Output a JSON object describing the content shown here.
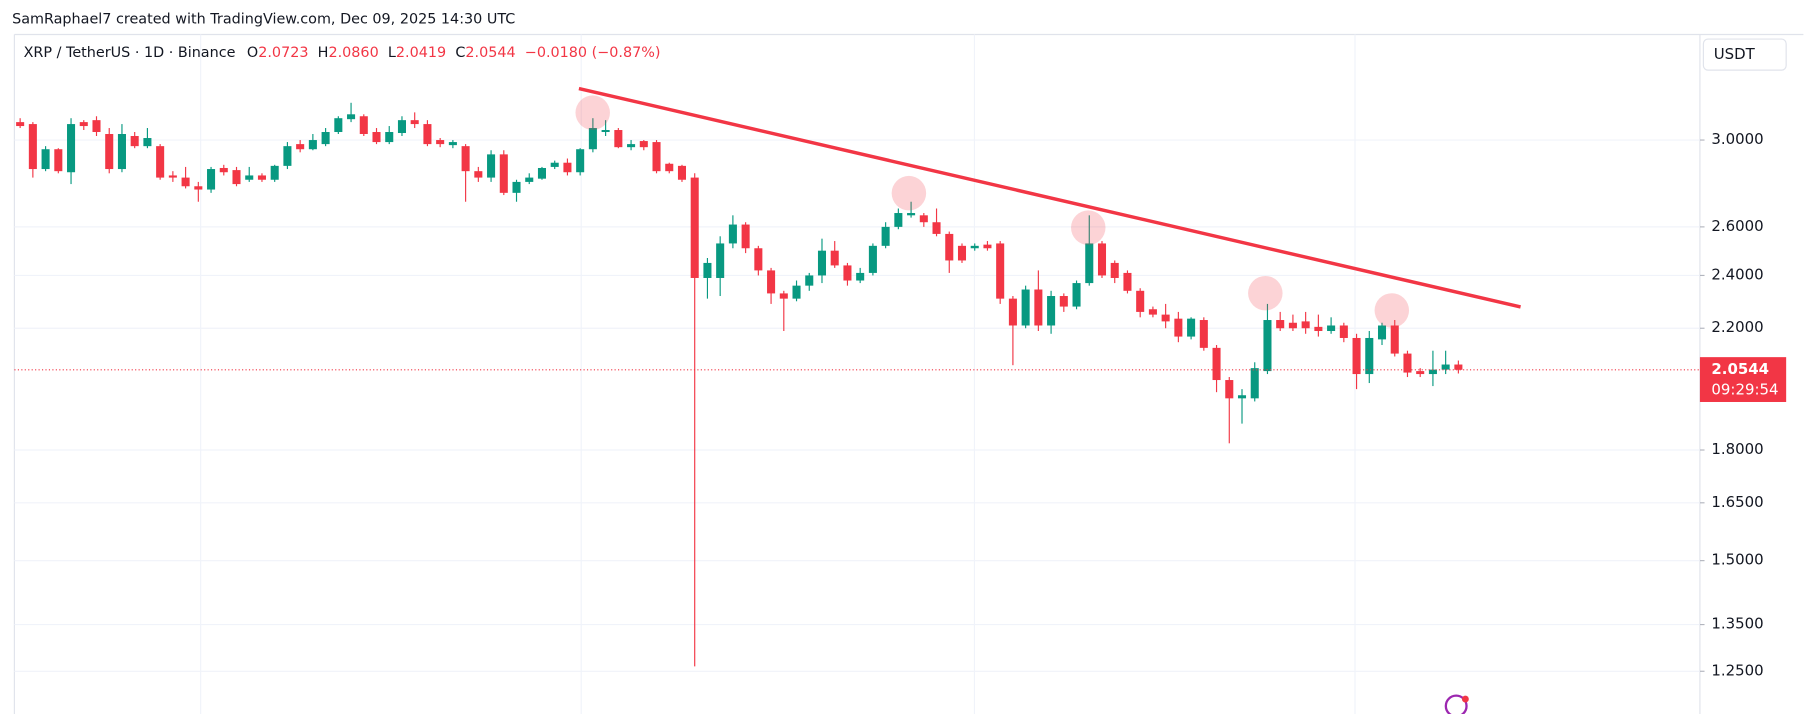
{
  "watermark": "SamRaphael7 created with TradingView.com, Dec 09, 2025 14:30 UTC",
  "header": {
    "symbol": "XRP / TetherUS · 1D · Binance",
    "open_label": "O",
    "open": "2.0723",
    "high_label": "H",
    "high": "2.0860",
    "low_label": "L",
    "low": "2.0419",
    "close_label": "C",
    "close": "2.0544",
    "change": "−0.0180 (−0.87%)"
  },
  "currency_button": "USDT",
  "countdown": "09:29:54",
  "chart_data": {
    "type": "candlestick",
    "log_scale": true,
    "grid": true,
    "up_color": "#089981",
    "down_color": "#f23645",
    "ylim": [
      1.165,
      3.57
    ],
    "yticks": [
      {
        "value": 3,
        "label": "3.0000"
      },
      {
        "value": 2.6,
        "label": "2.6000"
      },
      {
        "value": 2.4,
        "label": "2.4000"
      },
      {
        "value": 2.2,
        "label": "2.2000"
      },
      {
        "value": 1.8,
        "label": "1.8000"
      },
      {
        "value": 1.65,
        "label": "1.6500"
      },
      {
        "value": 1.5,
        "label": "1.5000"
      },
      {
        "value": 1.35,
        "label": "1.3500"
      },
      {
        "value": 1.25,
        "label": "1.2500"
      }
    ],
    "open": [
      3.09,
      3.08,
      2.86,
      2.955,
      2.845,
      3.09,
      3.1,
      3.03,
      2.86,
      3.02,
      2.97,
      2.97,
      2.83,
      2.82,
      2.78,
      2.765,
      2.865,
      2.855,
      2.81,
      2.83,
      2.81,
      2.875,
      2.98,
      2.955,
      2.98,
      3.04,
      3.105,
      3.12,
      3.04,
      2.99,
      3.035,
      3.1,
      3.08,
      3.0,
      2.975,
      2.97,
      2.85,
      2.82,
      2.93,
      2.75,
      2.8,
      2.815,
      2.87,
      2.89,
      2.845,
      2.955,
      3.04,
      3.05,
      2.965,
      2.995,
      2.99,
      2.885,
      2.875,
      2.82,
      2.39,
      2.39,
      2.53,
      2.61,
      2.51,
      2.42,
      2.33,
      2.31,
      2.36,
      2.4,
      2.5,
      2.44,
      2.38,
      2.41,
      2.52,
      2.6,
      2.65,
      2.65,
      2.62,
      2.57,
      2.52,
      2.51,
      2.525,
      2.53,
      2.31,
      2.21,
      2.345,
      2.21,
      2.32,
      2.28,
      2.37,
      2.53,
      2.45,
      2.41,
      2.34,
      2.27,
      2.25,
      2.235,
      2.17,
      2.23,
      2.13,
      2.02,
      1.96,
      1.96,
      2.05,
      2.23,
      2.22,
      2.225,
      2.205,
      2.19,
      2.21,
      2.165,
      2.04,
      2.16,
      2.21,
      2.11,
      2.05,
      2.04,
      2.055,
      2.0723
    ],
    "high": [
      3.11,
      3.09,
      2.97,
      2.96,
      3.11,
      3.1,
      3.12,
      3.06,
      3.08,
      3.04,
      3.06,
      2.98,
      2.85,
      2.87,
      2.8,
      2.87,
      2.88,
      2.87,
      2.87,
      2.84,
      2.88,
      2.99,
      3.0,
      3.03,
      3.06,
      3.12,
      3.19,
      3.13,
      3.06,
      3.07,
      3.12,
      3.14,
      3.1,
      3.01,
      3.0,
      2.98,
      2.87,
      2.95,
      2.95,
      2.81,
      2.84,
      2.87,
      2.9,
      2.91,
      2.96,
      3.11,
      3.1,
      3.06,
      3.0,
      3.0,
      3.0,
      2.89,
      2.88,
      2.84,
      2.47,
      2.56,
      2.65,
      2.62,
      2.52,
      2.43,
      2.34,
      2.38,
      2.41,
      2.55,
      2.54,
      2.45,
      2.43,
      2.53,
      2.62,
      2.68,
      2.71,
      2.66,
      2.68,
      2.58,
      2.53,
      2.53,
      2.54,
      2.54,
      2.32,
      2.36,
      2.42,
      2.34,
      2.33,
      2.38,
      2.65,
      2.54,
      2.46,
      2.42,
      2.35,
      2.28,
      2.29,
      2.26,
      2.24,
      2.24,
      2.14,
      2.03,
      1.99,
      2.08,
      2.29,
      2.26,
      2.25,
      2.26,
      2.25,
      2.24,
      2.22,
      2.18,
      2.19,
      2.22,
      2.23,
      2.12,
      2.06,
      2.12,
      2.12,
      2.086
    ],
    "low": [
      3.06,
      2.82,
      2.85,
      2.84,
      2.79,
      3.05,
      3.02,
      2.84,
      2.845,
      2.96,
      2.96,
      2.81,
      2.8,
      2.77,
      2.71,
      2.75,
      2.83,
      2.78,
      2.8,
      2.8,
      2.8,
      2.86,
      2.94,
      2.95,
      2.97,
      3.03,
      3.09,
      3.02,
      2.98,
      2.98,
      3.02,
      3.06,
      2.97,
      2.965,
      2.96,
      2.71,
      2.8,
      2.8,
      2.74,
      2.71,
      2.79,
      2.81,
      2.86,
      2.83,
      2.83,
      2.94,
      3.02,
      2.96,
      2.95,
      2.95,
      2.84,
      2.84,
      2.8,
      1.26,
      2.31,
      2.32,
      2.51,
      2.49,
      2.4,
      2.29,
      2.19,
      2.3,
      2.34,
      2.37,
      2.43,
      2.36,
      2.37,
      2.4,
      2.51,
      2.59,
      2.64,
      2.6,
      2.56,
      2.41,
      2.45,
      2.5,
      2.5,
      2.29,
      2.07,
      2.2,
      2.19,
      2.18,
      2.26,
      2.27,
      2.36,
      2.39,
      2.37,
      2.33,
      2.24,
      2.24,
      2.2,
      2.15,
      2.16,
      2.12,
      1.98,
      1.82,
      1.88,
      1.95,
      2.04,
      2.19,
      2.19,
      2.18,
      2.17,
      2.18,
      2.15,
      1.99,
      2.01,
      2.14,
      2.1,
      2.03,
      2.03,
      2.0,
      2.04,
      2.0419
    ],
    "close": [
      3.07,
      2.86,
      2.955,
      2.85,
      3.08,
      3.07,
      3.04,
      2.86,
      3.03,
      2.97,
      3.01,
      2.82,
      2.82,
      2.78,
      2.765,
      2.86,
      2.845,
      2.79,
      2.83,
      2.81,
      2.875,
      2.97,
      2.955,
      3.0,
      3.04,
      3.11,
      3.13,
      3.03,
      2.99,
      3.04,
      3.1,
      3.08,
      2.98,
      2.98,
      2.99,
      2.85,
      2.82,
      2.93,
      2.75,
      2.8,
      2.82,
      2.865,
      2.89,
      2.845,
      2.955,
      3.06,
      3.05,
      2.965,
      2.98,
      2.965,
      2.85,
      2.85,
      2.81,
      2.39,
      2.45,
      2.53,
      2.61,
      2.51,
      2.42,
      2.33,
      2.31,
      2.36,
      2.4,
      2.5,
      2.44,
      2.38,
      2.41,
      2.52,
      2.6,
      2.66,
      2.66,
      2.62,
      2.57,
      2.46,
      2.46,
      2.52,
      2.51,
      2.31,
      2.21,
      2.345,
      2.21,
      2.32,
      2.28,
      2.37,
      2.53,
      2.4,
      2.39,
      2.34,
      2.26,
      2.25,
      2.225,
      2.17,
      2.235,
      2.13,
      2.02,
      1.96,
      1.97,
      2.06,
      2.23,
      2.2,
      2.2,
      2.2,
      2.19,
      2.21,
      2.165,
      2.04,
      2.165,
      2.21,
      2.11,
      2.045,
      2.04,
      2.055,
      2.0723,
      2.0544
    ]
  }
}
